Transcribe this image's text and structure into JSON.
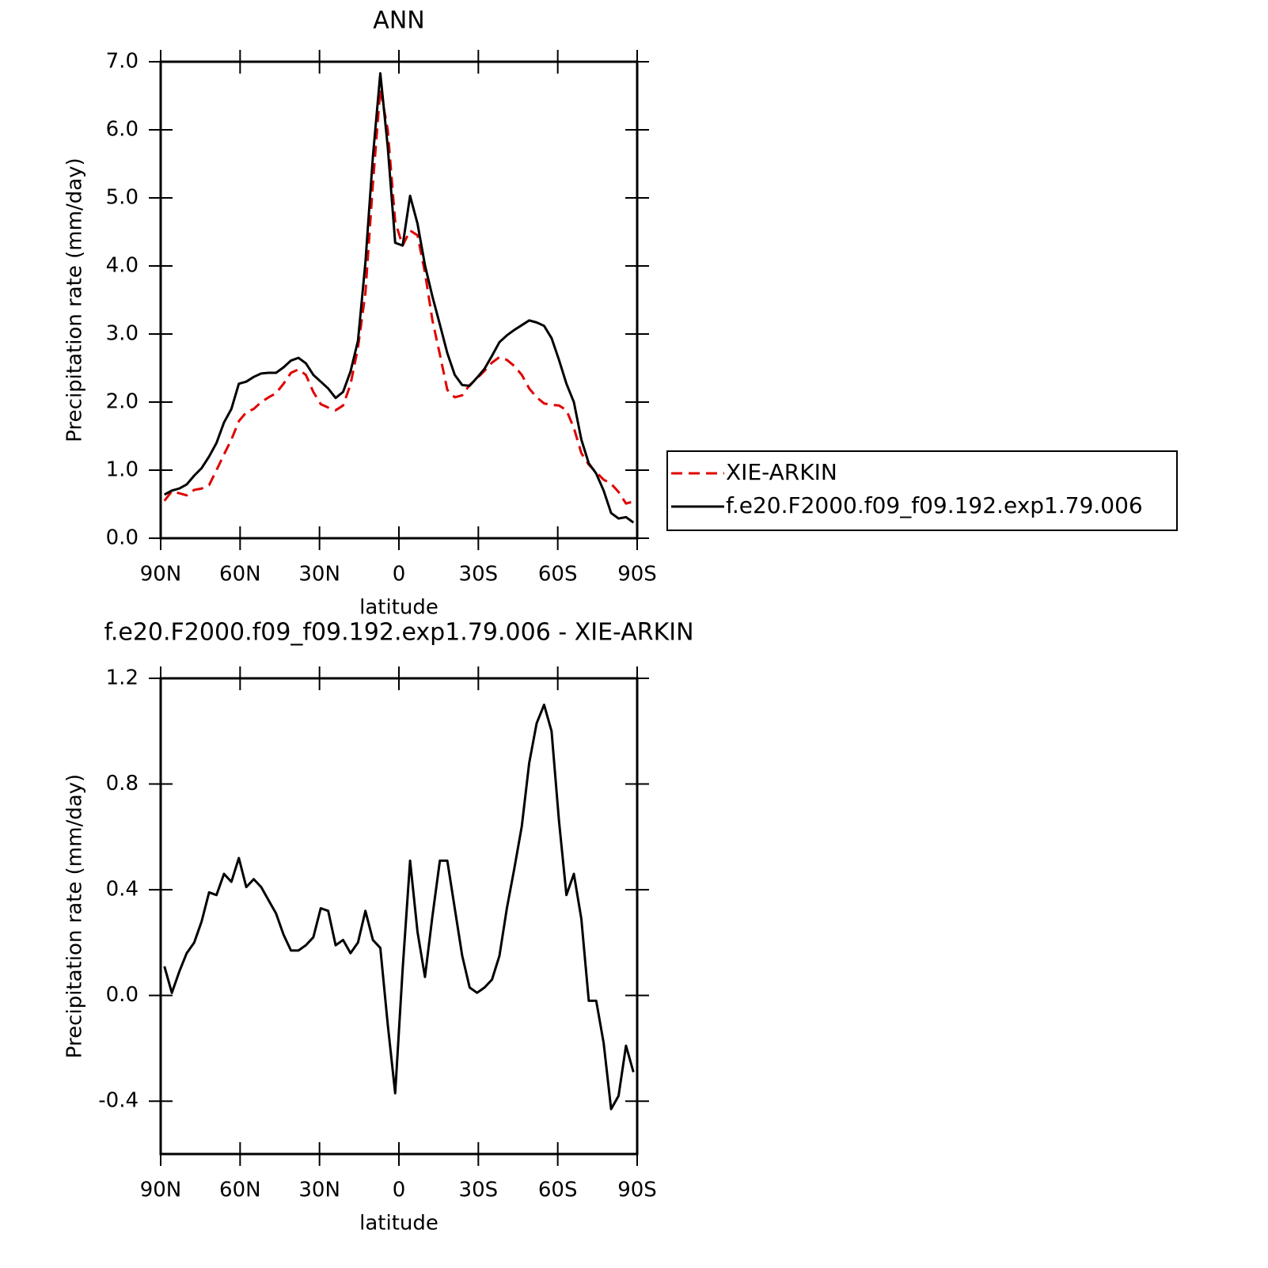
{
  "chart_data": [
    {
      "type": "line",
      "title": "ANN",
      "xlabel": "latitude",
      "ylabel": "Precipitation rate (mm/day)",
      "x": [
        88.59,
        85.78,
        82.97,
        80.16,
        77.34,
        74.53,
        71.72,
        68.91,
        66.09,
        63.28,
        60.47,
        57.66,
        54.84,
        52.03,
        49.22,
        46.41,
        43.59,
        40.78,
        37.97,
        35.16,
        32.34,
        29.53,
        26.72,
        23.91,
        21.09,
        18.28,
        15.47,
        12.66,
        9.84,
        7.03,
        4.22,
        1.41,
        -1.41,
        -4.22,
        -7.03,
        -9.84,
        -12.66,
        -15.47,
        -18.28,
        -21.09,
        -23.91,
        -26.72,
        -29.53,
        -32.34,
        -35.16,
        -37.97,
        -40.78,
        -43.59,
        -46.41,
        -49.22,
        -52.03,
        -54.84,
        -57.66,
        -60.47,
        -63.28,
        -66.09,
        -68.91,
        -71.72,
        -74.53,
        -77.34,
        -80.16,
        -82.97,
        -85.78,
        -88.59
      ],
      "series": [
        {
          "name": "XIE-ARKIN",
          "color": "#e00000",
          "dash": true,
          "values": [
            0.55,
            0.69,
            0.66,
            0.63,
            0.71,
            0.73,
            0.78,
            1.0,
            1.23,
            1.45,
            1.72,
            1.85,
            1.9,
            2.0,
            2.07,
            2.13,
            2.27,
            2.43,
            2.48,
            2.4,
            2.15,
            1.97,
            1.92,
            1.88,
            1.95,
            2.26,
            2.8,
            3.6,
            5.2,
            6.6,
            6.0,
            4.65,
            4.3,
            4.52,
            4.45,
            3.9,
            3.2,
            2.7,
            2.18,
            2.07,
            2.1,
            2.25,
            2.35,
            2.46,
            2.58,
            2.66,
            2.62,
            2.53,
            2.4,
            2.2,
            2.07,
            1.98,
            1.96,
            1.95,
            1.88,
            1.62,
            1.25,
            1.08,
            0.97,
            0.86,
            0.8,
            0.68,
            0.51,
            0.54
          ]
        },
        {
          "name": "f.e20.F2000.f09_f09.192.exp1.79.006",
          "color": "#000000",
          "dash": false,
          "values": [
            0.64,
            0.7,
            0.73,
            0.79,
            0.92,
            1.03,
            1.2,
            1.4,
            1.7,
            1.9,
            2.27,
            2.3,
            2.37,
            2.42,
            2.43,
            2.43,
            2.51,
            2.61,
            2.65,
            2.57,
            2.4,
            2.3,
            2.2,
            2.06,
            2.15,
            2.45,
            2.9,
            4.05,
            5.6,
            6.83,
            5.75,
            4.34,
            4.3,
            5.03,
            4.62,
            4.01,
            3.55,
            3.14,
            2.72,
            2.4,
            2.25,
            2.24,
            2.36,
            2.49,
            2.68,
            2.88,
            2.98,
            3.06,
            3.13,
            3.2,
            3.17,
            3.12,
            2.94,
            2.62,
            2.27,
            2.0,
            1.45,
            1.1,
            0.95,
            0.7,
            0.37,
            0.29,
            0.31,
            0.23
          ]
        }
      ],
      "xlim": [
        90,
        -90
      ],
      "xticks": [
        {
          "value": 90,
          "label": "90N"
        },
        {
          "value": 60,
          "label": "60N"
        },
        {
          "value": 30,
          "label": "30N"
        },
        0,
        {
          "value": -30,
          "label": "30S"
        },
        {
          "value": -60,
          "label": "60S"
        },
        {
          "value": -90,
          "label": "90S"
        }
      ],
      "ylim": [
        0,
        7
      ],
      "yticks": [
        {
          "value": 0,
          "label": "0.0"
        },
        {
          "value": 1,
          "label": "1.0"
        },
        {
          "value": 2,
          "label": "2.0"
        },
        {
          "value": 3,
          "label": "3.0"
        },
        {
          "value": 4,
          "label": "4.0"
        },
        {
          "value": 5,
          "label": "5.0"
        },
        {
          "value": 6,
          "label": "6.0"
        },
        {
          "value": 7,
          "label": "7.0"
        }
      ],
      "legend": "right"
    },
    {
      "type": "line",
      "title": "f.e20.F2000.f09_f09.192.exp1.79.006 - XIE-ARKIN",
      "xlabel": "latitude",
      "ylabel": "Precipitation rate (mm/day)",
      "x": [
        88.59,
        85.78,
        82.97,
        80.16,
        77.34,
        74.53,
        71.72,
        68.91,
        66.09,
        63.28,
        60.47,
        57.66,
        54.84,
        52.03,
        49.22,
        46.41,
        43.59,
        40.78,
        37.97,
        35.16,
        32.34,
        29.53,
        26.72,
        23.91,
        21.09,
        18.28,
        15.47,
        12.66,
        9.84,
        7.03,
        4.22,
        1.41,
        -1.41,
        -4.22,
        -7.03,
        -9.84,
        -12.66,
        -15.47,
        -18.28,
        -21.09,
        -23.91,
        -26.72,
        -29.53,
        -32.34,
        -35.16,
        -37.97,
        -40.78,
        -43.59,
        -46.41,
        -49.22,
        -52.03,
        -54.84,
        -57.66,
        -60.47,
        -63.28,
        -66.09,
        -68.91,
        -71.72,
        -74.53,
        -77.34,
        -80.16,
        -82.97,
        -85.78,
        -88.59
      ],
      "series": [
        {
          "color": "#000000",
          "dash": false,
          "values": [
            0.11,
            0.01,
            0.09,
            0.16,
            0.2,
            0.28,
            0.39,
            0.38,
            0.46,
            0.43,
            0.52,
            0.41,
            0.44,
            0.41,
            0.36,
            0.31,
            0.23,
            0.17,
            0.17,
            0.19,
            0.22,
            0.33,
            0.32,
            0.19,
            0.21,
            0.16,
            0.2,
            0.32,
            0.21,
            0.18,
            -0.11,
            -0.37,
            0.1,
            0.51,
            0.24,
            0.07,
            0.3,
            0.51,
            0.51,
            0.33,
            0.15,
            0.03,
            0.01,
            0.03,
            0.06,
            0.15,
            0.33,
            0.48,
            0.64,
            0.88,
            1.03,
            1.1,
            1.0,
            0.66,
            0.38,
            0.46,
            0.29,
            -0.02,
            -0.02,
            -0.18,
            -0.43,
            -0.38,
            -0.19,
            -0.29
          ]
        }
      ],
      "xlim": [
        90,
        -90
      ],
      "xticks": [
        {
          "value": 90,
          "label": "90N"
        },
        {
          "value": 60,
          "label": "60N"
        },
        {
          "value": 30,
          "label": "30N"
        },
        0,
        {
          "value": -30,
          "label": "30S"
        },
        {
          "value": -60,
          "label": "60S"
        },
        {
          "value": -90,
          "label": "90S"
        }
      ],
      "ylim": [
        -0.6,
        1.2
      ],
      "yticks": [
        -0.4,
        {
          "value": 0,
          "label": "0.0"
        },
        0.4,
        0.8,
        1.2
      ]
    }
  ]
}
